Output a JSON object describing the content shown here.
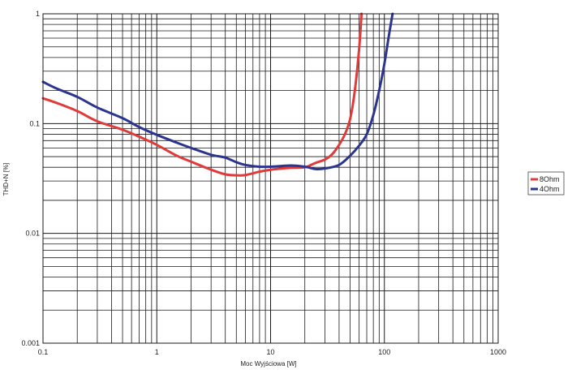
{
  "chart_data": {
    "type": "line",
    "title": "",
    "xlabel": "Moc Wyjściowa [W]",
    "ylabel": "THD+N [%]",
    "x_scale": "log",
    "y_scale": "log",
    "xlim": [
      0.1,
      1000
    ],
    "ylim": [
      0.001,
      1
    ],
    "grid": true,
    "legend_position": "right",
    "x_ticks": [
      "0.1",
      "1",
      "10",
      "100",
      "1000"
    ],
    "y_ticks": [
      "0.001",
      "0.01",
      "0.1",
      "1"
    ],
    "series": [
      {
        "name": "8Ohm",
        "color": "#e03a3a",
        "points": [
          [
            0.1,
            0.17
          ],
          [
            0.13,
            0.155
          ],
          [
            0.2,
            0.13
          ],
          [
            0.3,
            0.105
          ],
          [
            0.5,
            0.088
          ],
          [
            0.7,
            0.076
          ],
          [
            1,
            0.064
          ],
          [
            1.5,
            0.051
          ],
          [
            2,
            0.045
          ],
          [
            3,
            0.038
          ],
          [
            4,
            0.0345
          ],
          [
            5,
            0.0338
          ],
          [
            6,
            0.034
          ],
          [
            8,
            0.0365
          ],
          [
            10,
            0.038
          ],
          [
            15,
            0.0395
          ],
          [
            20,
            0.04
          ],
          [
            25,
            0.044
          ],
          [
            30,
            0.047
          ],
          [
            35,
            0.053
          ],
          [
            40,
            0.064
          ],
          [
            45,
            0.08
          ],
          [
            50,
            0.11
          ],
          [
            55,
            0.2
          ],
          [
            60,
            0.48
          ],
          [
            63,
            1.0
          ]
        ]
      },
      {
        "name": "4Ohm",
        "color": "#2b3590",
        "points": [
          [
            0.1,
            0.24
          ],
          [
            0.13,
            0.21
          ],
          [
            0.2,
            0.175
          ],
          [
            0.3,
            0.14
          ],
          [
            0.5,
            0.112
          ],
          [
            0.7,
            0.093
          ],
          [
            1,
            0.079
          ],
          [
            1.5,
            0.067
          ],
          [
            2,
            0.06
          ],
          [
            3,
            0.052
          ],
          [
            4,
            0.049
          ],
          [
            5,
            0.0445
          ],
          [
            6,
            0.042
          ],
          [
            8,
            0.0405
          ],
          [
            10,
            0.0405
          ],
          [
            15,
            0.0415
          ],
          [
            20,
            0.0405
          ],
          [
            25,
            0.0385
          ],
          [
            30,
            0.039
          ],
          [
            40,
            0.042
          ],
          [
            50,
            0.051
          ],
          [
            60,
            0.063
          ],
          [
            70,
            0.08
          ],
          [
            80,
            0.12
          ],
          [
            90,
            0.2
          ],
          [
            100,
            0.35
          ],
          [
            110,
            0.65
          ],
          [
            118,
            1.0
          ]
        ]
      }
    ]
  }
}
